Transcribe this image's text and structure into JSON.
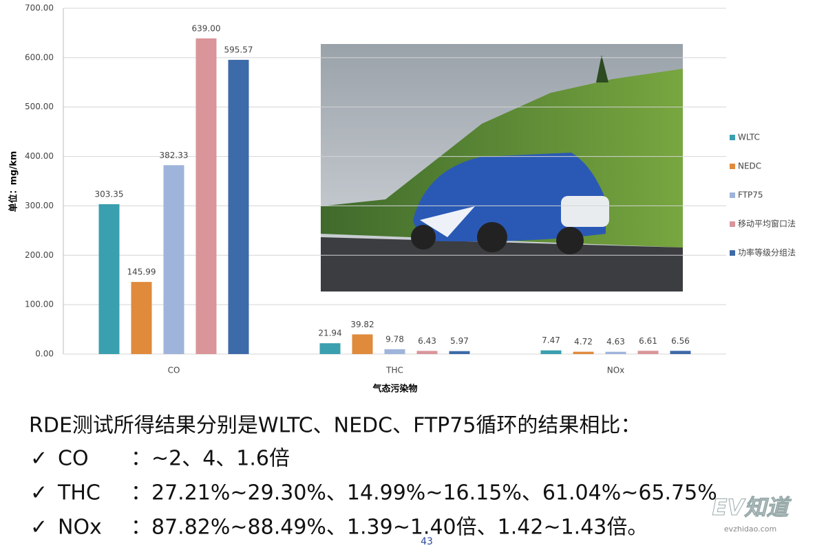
{
  "chart_data": {
    "type": "bar",
    "y_label": "单位：mg/km",
    "x_label": "气态污染物",
    "categories": [
      "CO",
      "THC",
      "NOx"
    ],
    "series": [
      {
        "name": "WLTC",
        "color": "#3a9fae",
        "values": [
          303.35,
          21.94,
          7.47
        ]
      },
      {
        "name": "NEDC",
        "color": "#e08a3c",
        "values": [
          145.99,
          39.82,
          4.72
        ]
      },
      {
        "name": "FTP75",
        "color": "#9fb4db",
        "values": [
          382.33,
          9.78,
          4.63
        ]
      },
      {
        "name": "移动平均窗口法",
        "color": "#d9959a",
        "values": [
          639,
          6.43,
          6.61
        ],
        "value_labels": [
          "639.00",
          "6.43",
          "6.61"
        ]
      },
      {
        "name": "功率等级分组法",
        "color": "#3d6aa8",
        "values": [
          595.57,
          5.97,
          6.56
        ]
      }
    ],
    "ylim": [
      0,
      700
    ],
    "yticks": [
      {
        "value": 0,
        "label": "0.00"
      },
      {
        "value": 100,
        "label": "100.00"
      },
      {
        "value": 200,
        "label": "200.00"
      },
      {
        "value": 300,
        "label": "300.00"
      },
      {
        "value": 400,
        "label": "400.00"
      },
      {
        "value": 500,
        "label": "500.00"
      },
      {
        "value": 600,
        "label": "600.00"
      },
      {
        "value": 700,
        "label": "700.00"
      }
    ],
    "grid": true,
    "legend": "right"
  },
  "notes": {
    "heading": "RDE测试所得结果分别是WLTC、NEDC、FTP75循环的结果相比：",
    "items": [
      {
        "label": "CO",
        "text": "：~2、4、1.6倍"
      },
      {
        "label": "THC",
        "text": "：27.21%~29.30%、14.99%~16.15%、61.04%~65.75%"
      },
      {
        "label": "NOx",
        "text": "：87.82%~88.49%、1.39~1.40倍、1.42~1.43倍。"
      }
    ]
  },
  "page_number": "43",
  "watermark": {
    "logo": "EV知道",
    "site": "evzhidao.com"
  }
}
